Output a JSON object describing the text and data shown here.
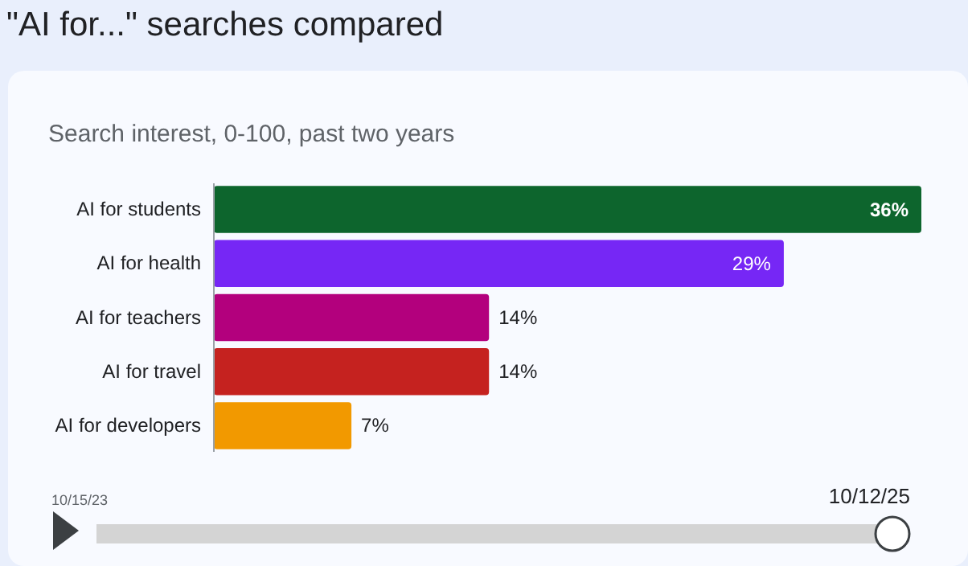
{
  "chart_data": {
    "type": "bar",
    "orientation": "horizontal",
    "title": "\"AI for...\" searches compared",
    "subtitle": "Search interest, 0-100, past two years",
    "categories": [
      "AI for students",
      "AI for health",
      "AI for teachers",
      "AI for travel",
      "AI for developers"
    ],
    "values": [
      36,
      29,
      14,
      14,
      7
    ],
    "colors": [
      "#0d652d",
      "#7627f5",
      "#b3007d",
      "#c5221f",
      "#f29900"
    ],
    "value_labels": [
      "36%",
      "29%",
      "14%",
      "14%",
      "7%"
    ],
    "annotations": [
      "10/15/23",
      "10/12/25"
    ],
    "grid": false
  }
}
